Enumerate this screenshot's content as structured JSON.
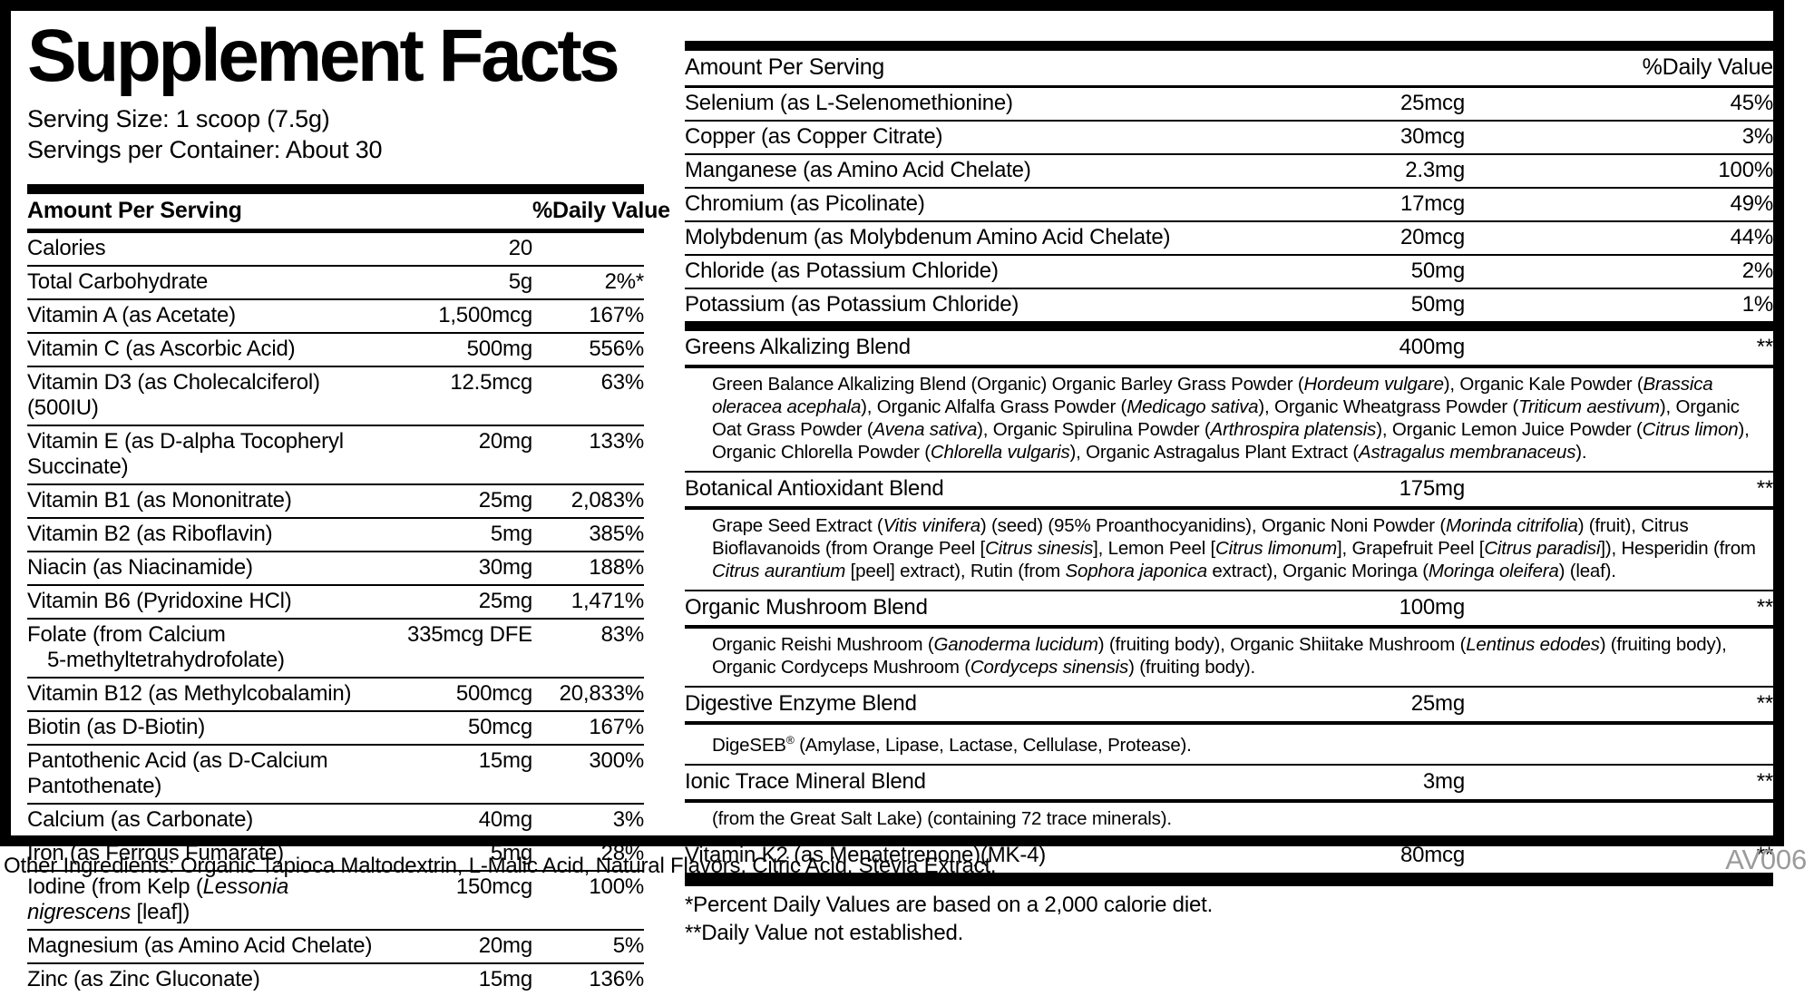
{
  "label": {
    "title": "Supplement Facts",
    "serving_size": "Serving Size: 1 scoop (7.5g)",
    "servings_per_container": "Servings per Container: About 30",
    "columns": {
      "amount": "Amount Per Serving",
      "dv": "%Daily Value"
    },
    "left_rows": [
      {
        "label": "Calories",
        "amount": "20",
        "dv": ""
      },
      {
        "label": "Total Carbohydrate",
        "amount": "5g",
        "dv": "2%*"
      },
      {
        "label": "Vitamin A (as Acetate)",
        "amount": "1,500mcg",
        "dv": "167%"
      },
      {
        "label": "Vitamin C (as Ascorbic Acid)",
        "amount": "500mg",
        "dv": "556%"
      },
      {
        "label": "Vitamin D3 (as Cholecalciferol)(500IU)",
        "amount": "12.5mcg",
        "dv": "63%"
      },
      {
        "label": "Vitamin E (as D-alpha Tocopheryl Succinate)",
        "amount": "20mg",
        "dv": "133%"
      },
      {
        "label": "Vitamin B1 (as Mononitrate)",
        "amount": "25mg",
        "dv": "2,083%"
      },
      {
        "label": "Vitamin B2 (as Riboflavin)",
        "amount": "5mg",
        "dv": "385%"
      },
      {
        "label": "Niacin (as Niacinamide)",
        "amount": "30mg",
        "dv": "188%"
      },
      {
        "label": "Vitamin B6 (Pyridoxine HCl)",
        "amount": "25mg",
        "dv": "1,471%"
      },
      {
        "label": "Folate (from Calcium",
        "label2": "5-methyltetrahydrofolate)",
        "amount": "335mcg DFE",
        "dv": "83%"
      },
      {
        "label": "Vitamin B12 (as Methylcobalamin)",
        "amount": "500mcg",
        "dv": "20,833%"
      },
      {
        "label": "Biotin (as D-Biotin)",
        "amount": "50mcg",
        "dv": "167%"
      },
      {
        "label": "Pantothenic Acid (as D-Calcium Pantothenate)",
        "amount": "15mg",
        "dv": "300%"
      },
      {
        "label": "Calcium (as Carbonate)",
        "amount": "40mg",
        "dv": "3%"
      },
      {
        "label": "Iron (as Ferrous Fumarate)",
        "amount": "5mg",
        "dv": "28%"
      },
      {
        "label": [
          "Iodine (from Kelp (",
          {
            "i": "Lessonia nigrescens"
          },
          " [leaf])"
        ],
        "amount": "150mcg",
        "dv": "100%"
      },
      {
        "label": "Magnesium (as Amino Acid Chelate)",
        "amount": "20mg",
        "dv": "5%"
      },
      {
        "label": "Zinc (as Zinc Gluconate)",
        "amount": "15mg",
        "dv": "136%"
      }
    ],
    "right_rows": [
      {
        "label": "Selenium (as L-Selenomethionine)",
        "amount": "25mcg",
        "dv": "45%"
      },
      {
        "label": "Copper (as Copper Citrate)",
        "amount": "30mcg",
        "dv": "3%"
      },
      {
        "label": "Manganese (as Amino Acid Chelate)",
        "amount": "2.3mg",
        "dv": "100%"
      },
      {
        "label": "Chromium (as Picolinate)",
        "amount": "17mcg",
        "dv": "49%"
      },
      {
        "label": "Molybdenum (as Molybdenum Amino Acid Chelate)",
        "amount": "20mcg",
        "dv": "44%"
      },
      {
        "label": "Chloride (as Potassium Chloride)",
        "amount": "50mg",
        "dv": "2%"
      },
      {
        "label": "Potassium (as Potassium Chloride)",
        "amount": "50mg",
        "dv": "1%"
      }
    ],
    "blends": [
      {
        "name": "Greens Alkalizing Blend",
        "amount": "400mg",
        "dv": "**",
        "desc": [
          "Green Balance Alkalizing Blend (Organic) Organic Barley Grass Powder (",
          {
            "i": "Hordeum vulgare"
          },
          "), Organic Kale Powder (",
          {
            "i": "Brassica oleracea acephala"
          },
          "), Organic Alfalfa Grass Powder (",
          {
            "i": "Medicago sativa"
          },
          "), Organic Wheatgrass Powder (",
          {
            "i": "Triticum aestivum"
          },
          "), Organic Oat Grass Powder (",
          {
            "i": "Avena sativa"
          },
          "), Organic Spirulina Powder (",
          {
            "i": "Arthrospira platensis"
          },
          "), Organic Lemon Juice Powder (",
          {
            "i": "Citrus limon"
          },
          "), Organic Chlorella Powder (",
          {
            "i": "Chlorella vulgaris"
          },
          "), Organic Astragalus Plant Extract (",
          {
            "i": "Astragalus membranaceus"
          },
          ")."
        ]
      },
      {
        "name": "Botanical Antioxidant Blend",
        "amount": "175mg",
        "dv": "**",
        "desc": [
          "Grape Seed Extract (",
          {
            "i": "Vitis vinifera"
          },
          ") (seed) (95% Proanthocyanidins), Organic Noni Powder (",
          {
            "i": "Morinda citrifolia"
          },
          ") (fruit), Citrus Bioflavanoids (from Orange Peel [",
          {
            "i": "Citrus sinesis"
          },
          "], Lemon Peel [",
          {
            "i": "Citrus limonum"
          },
          "], Grapefruit Peel [",
          {
            "i": "Citrus paradisi"
          },
          "]), Hesperidin (from ",
          {
            "i": "Citrus aurantium"
          },
          " [peel] extract), Rutin (from ",
          {
            "i": "Sophora japonica"
          },
          " extract), Organic Moringa (",
          {
            "i": "Moringa oleifera"
          },
          ") (leaf)."
        ]
      },
      {
        "name": "Organic Mushroom Blend",
        "amount": "100mg",
        "dv": "**",
        "desc": [
          "Organic Reishi Mushroom (",
          {
            "i": "Ganoderma lucidum"
          },
          ") (fruiting body), Organic Shiitake Mushroom (",
          {
            "i": "Lentinus edodes"
          },
          ") (fruiting body), Organic Cordyceps Mushroom (",
          {
            "i": "Cordyceps sinensis"
          },
          ") (fruiting body)."
        ]
      },
      {
        "name": "Digestive Enzyme Blend",
        "amount": "25mg",
        "dv": "**",
        "desc": [
          "DigeSEB",
          {
            "sup": "®"
          },
          " (Amylase, Lipase, Lactase, Cellulase, Protease)."
        ]
      },
      {
        "name": "Ionic Trace Mineral Blend",
        "amount": "3mg",
        "dv": "**",
        "desc": [
          "(from the Great Salt Lake) (containing 72 trace minerals)."
        ]
      },
      {
        "name": "Vitamin K2 (as Menatetrenone)(MK-4)",
        "amount": "80mcg",
        "dv": "**",
        "desc": null
      }
    ],
    "footnotes": [
      "*Percent Daily Values are based on a 2,000 calorie diet.",
      "**Daily Value not established."
    ],
    "other_ingredients": "Other Ingredients: Organic Tapioca Maltodextrin, L-Malic Acid, Natural Flavors, Citric Acid, Stevia Extract.",
    "code": "AV006",
    "colors": {
      "text": "#000000",
      "code_gray": "#9b9b9b"
    }
  }
}
